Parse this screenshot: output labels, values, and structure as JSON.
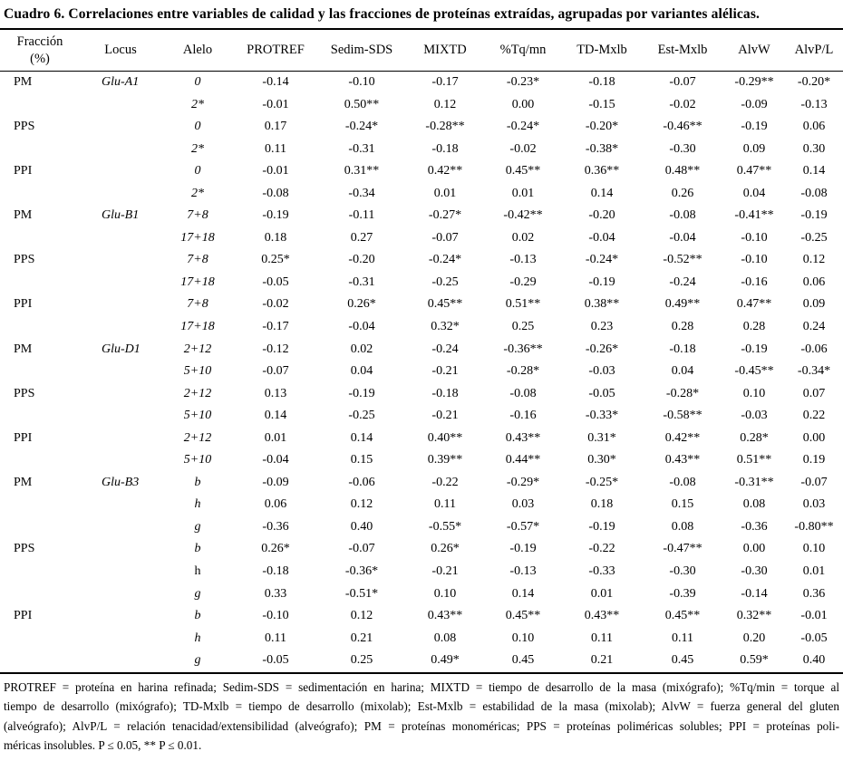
{
  "title": "Cuadro 6. Correlaciones entre variables de calidad y las fracciones de proteínas extraídas, agrupadas por variantes alélicas.",
  "table": {
    "columns": [
      {
        "id": "fraction",
        "label": "Fracción\n(%)"
      },
      {
        "id": "locus",
        "label": "Locus"
      },
      {
        "id": "allele",
        "label": "Alelo"
      },
      {
        "id": "protref",
        "label": "PROTREF"
      },
      {
        "id": "sedim-sds",
        "label": "Sedim-SDS"
      },
      {
        "id": "mixtd",
        "label": "MIXTD"
      },
      {
        "id": "tq-mn",
        "label": "%Tq/mn"
      },
      {
        "id": "td-mxlb",
        "label": "TD-Mxlb"
      },
      {
        "id": "est-mxlb",
        "label": "Est-Mxlb"
      },
      {
        "id": "alvw",
        "label": "AlvW"
      },
      {
        "id": "alvp-l",
        "label": "AlvP/L"
      }
    ],
    "rows": [
      {
        "fraction": "PM",
        "locus": "Glu-A1",
        "allele": "0",
        "allele_italic": true,
        "values": [
          "-0.14",
          "-0.10",
          "-0.17",
          "-0.23*",
          "-0.18",
          "-0.07",
          "-0.29**",
          "-0.20*"
        ]
      },
      {
        "fraction": "",
        "locus": "",
        "allele": "2*",
        "allele_italic": true,
        "values": [
          "-0.01",
          "0.50**",
          "0.12",
          "0.00",
          "-0.15",
          "-0.02",
          "-0.09",
          "-0.13"
        ]
      },
      {
        "fraction": "PPS",
        "locus": "",
        "allele": "0",
        "allele_italic": true,
        "values": [
          "0.17",
          "-0.24*",
          "-0.28**",
          "-0.24*",
          "-0.20*",
          "-0.46**",
          "-0.19",
          "0.06"
        ]
      },
      {
        "fraction": "",
        "locus": "",
        "allele": "2*",
        "allele_italic": true,
        "values": [
          "0.11",
          "-0.31",
          "-0.18",
          "-0.02",
          "-0.38*",
          "-0.30",
          "0.09",
          "0.30"
        ]
      },
      {
        "fraction": "PPI",
        "locus": "",
        "allele": "0",
        "allele_italic": true,
        "values": [
          "-0.01",
          "0.31**",
          "0.42**",
          "0.45**",
          "0.36**",
          "0.48**",
          "0.47**",
          "0.14"
        ]
      },
      {
        "fraction": "",
        "locus": "",
        "allele": "2*",
        "allele_italic": true,
        "values": [
          "-0.08",
          "-0.34",
          "0.01",
          "0.01",
          "0.14",
          "0.26",
          "0.04",
          "-0.08"
        ]
      },
      {
        "fraction": "PM",
        "locus": "Glu-B1",
        "allele": "7+8",
        "allele_italic": true,
        "values": [
          "-0.19",
          "-0.11",
          "-0.27*",
          "-0.42**",
          "-0.20",
          "-0.08",
          "-0.41**",
          "-0.19"
        ]
      },
      {
        "fraction": "",
        "locus": "",
        "allele": "17+18",
        "allele_italic": true,
        "values": [
          "0.18",
          "0.27",
          "-0.07",
          "0.02",
          "-0.04",
          "-0.04",
          "-0.10",
          "-0.25"
        ]
      },
      {
        "fraction": "PPS",
        "locus": "",
        "allele": "7+8",
        "allele_italic": true,
        "values": [
          "0.25*",
          "-0.20",
          "-0.24*",
          "-0.13",
          "-0.24*",
          "-0.52**",
          "-0.10",
          "0.12"
        ]
      },
      {
        "fraction": "",
        "locus": "",
        "allele": "17+18",
        "allele_italic": true,
        "values": [
          "-0.05",
          "-0.31",
          "-0.25",
          "-0.29",
          "-0.19",
          "-0.24",
          "-0.16",
          "0.06"
        ]
      },
      {
        "fraction": "PPI",
        "locus": "",
        "allele": "7+8",
        "allele_italic": true,
        "values": [
          "-0.02",
          "0.26*",
          "0.45**",
          "0.51**",
          "0.38**",
          "0.49**",
          "0.47**",
          "0.09"
        ]
      },
      {
        "fraction": "",
        "locus": "",
        "allele": "17+18",
        "allele_italic": true,
        "values": [
          "-0.17",
          "-0.04",
          "0.32*",
          "0.25",
          "0.23",
          "0.28",
          "0.28",
          "0.24"
        ]
      },
      {
        "fraction": "PM",
        "locus": "Glu-D1",
        "allele": "2+12",
        "allele_italic": true,
        "values": [
          "-0.12",
          "0.02",
          "-0.24",
          "-0.36**",
          "-0.26*",
          "-0.18",
          "-0.19",
          "-0.06"
        ]
      },
      {
        "fraction": "",
        "locus": "",
        "allele": "5+10",
        "allele_italic": true,
        "values": [
          "-0.07",
          "0.04",
          "-0.21",
          "-0.28*",
          "-0.03",
          "0.04",
          "-0.45**",
          "-0.34*"
        ]
      },
      {
        "fraction": "PPS",
        "locus": "",
        "allele": "2+12",
        "allele_italic": true,
        "values": [
          "0.13",
          "-0.19",
          "-0.18",
          "-0.08",
          "-0.05",
          "-0.28*",
          "0.10",
          "0.07"
        ]
      },
      {
        "fraction": "",
        "locus": "",
        "allele": "5+10",
        "allele_italic": true,
        "values": [
          "0.14",
          "-0.25",
          "-0.21",
          "-0.16",
          "-0.33*",
          "-0.58**",
          "-0.03",
          "0.22"
        ]
      },
      {
        "fraction": "PPI",
        "locus": "",
        "allele": "2+12",
        "allele_italic": true,
        "values": [
          "0.01",
          "0.14",
          "0.40**",
          "0.43**",
          "0.31*",
          "0.42**",
          "0.28*",
          "0.00"
        ]
      },
      {
        "fraction": "",
        "locus": "",
        "allele": "5+10",
        "allele_italic": true,
        "values": [
          "-0.04",
          "0.15",
          "0.39**",
          "0.44**",
          "0.30*",
          "0.43**",
          "0.51**",
          "0.19"
        ]
      },
      {
        "fraction": "PM",
        "locus": "Glu-B3",
        "allele": "b",
        "allele_italic": true,
        "values": [
          "-0.09",
          "-0.06",
          "-0.22",
          "-0.29*",
          "-0.25*",
          "-0.08",
          "-0.31**",
          "-0.07"
        ]
      },
      {
        "fraction": "",
        "locus": "",
        "allele": "h",
        "allele_italic": true,
        "values": [
          "0.06",
          "0.12",
          "0.11",
          "0.03",
          "0.18",
          "0.15",
          "0.08",
          "0.03"
        ]
      },
      {
        "fraction": "",
        "locus": "",
        "allele": "g",
        "allele_italic": true,
        "values": [
          "-0.36",
          "0.40",
          "-0.55*",
          "-0.57*",
          "-0.19",
          "0.08",
          "-0.36",
          "-0.80**"
        ]
      },
      {
        "fraction": "PPS",
        "locus": "",
        "allele": "b",
        "allele_italic": true,
        "values": [
          "0.26*",
          "-0.07",
          "0.26*",
          "-0.19",
          "-0.22",
          "-0.47**",
          "0.00",
          "0.10"
        ]
      },
      {
        "fraction": "",
        "locus": "",
        "allele": "h",
        "allele_italic": false,
        "values": [
          "-0.18",
          "-0.36*",
          "-0.21",
          "-0.13",
          "-0.33",
          "-0.30",
          "-0.30",
          "0.01"
        ]
      },
      {
        "fraction": "",
        "locus": "",
        "allele": "g",
        "allele_italic": true,
        "values": [
          "0.33",
          "-0.51*",
          "0.10",
          "0.14",
          "0.01",
          "-0.39",
          "-0.14",
          "0.36"
        ]
      },
      {
        "fraction": "PPI",
        "locus": "",
        "allele": "b",
        "allele_italic": true,
        "values": [
          "-0.10",
          "0.12",
          "0.43**",
          "0.45**",
          "0.43**",
          "0.45**",
          "0.32**",
          "-0.01"
        ]
      },
      {
        "fraction": "",
        "locus": "",
        "allele": "h",
        "allele_italic": true,
        "values": [
          "0.11",
          "0.21",
          "0.08",
          "0.10",
          "0.11",
          "0.11",
          "0.20",
          "-0.05"
        ]
      },
      {
        "fraction": "",
        "locus": "",
        "allele": "g",
        "allele_italic": true,
        "values": [
          "-0.05",
          "0.25",
          "0.49*",
          "0.45",
          "0.21",
          "0.45",
          "0.59*",
          "0.40"
        ]
      }
    ]
  },
  "footnote_lines": [
    "PROTREF = proteína en harina refinada; Sedim-SDS = sedimentación en harina; MIXTD = tiempo de desarrollo de la masa (mixógrafo); %Tq/min = torque al",
    "tiempo de desarrollo (mixógrafo); TD-Mxlb = tiempo de desarrollo (mixolab); Est-Mxlb = estabilidad de la masa (mixolab); AlvW = fuerza general del gluten",
    "(alveógrafo); AlvP/L =  relación tenacidad/extensibilidad (alveógrafo); PM = proteínas monoméricas; PPS = proteínas poliméricas solubles; PPI = proteínas poli-",
    "méricas insolubles. P ≤ 0.05, ** P ≤ 0.01."
  ]
}
